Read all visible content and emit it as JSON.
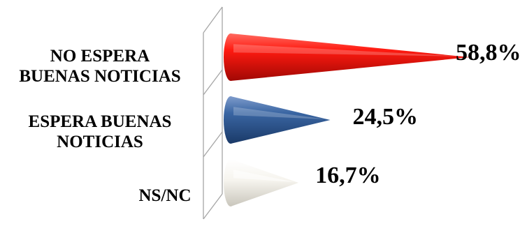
{
  "chart_data": {
    "type": "bar",
    "orientation": "horizontal",
    "bar_shape": "cone",
    "categories": [
      "NO ESPERA BUENAS NOTICIAS",
      "ESPERA BUENAS NOTICIAS",
      "NS/NC"
    ],
    "category_lines": [
      [
        "NO ESPERA",
        "BUENAS NOTICIAS"
      ],
      [
        "ESPERA BUENAS",
        "NOTICIAS"
      ],
      [
        "NS/NC"
      ]
    ],
    "values": [
      58.8,
      24.5,
      16.7
    ],
    "value_labels": [
      "58,8%",
      "24,5%",
      "16,7%"
    ],
    "colors": [
      "#e8140c",
      "#2e5b95",
      "#f2f0ea"
    ],
    "xlim": [
      0,
      60
    ],
    "grid": false,
    "legend": "none"
  }
}
